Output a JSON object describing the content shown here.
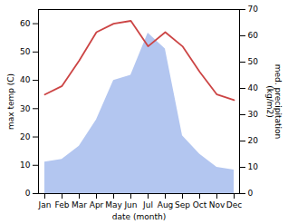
{
  "chart_data": {
    "type": "line",
    "xlabel": "date (month)",
    "ylabel": "max temp (C)",
    "y2label": "med. precipitation\n(kg/m2)",
    "categories": [
      "Jan",
      "Feb",
      "Mar",
      "Apr",
      "May",
      "Jun",
      "Jul",
      "Aug",
      "Sep",
      "Oct",
      "Nov",
      "Dec"
    ],
    "series": [
      {
        "type": "area",
        "axis": "y2",
        "color": "#b3c6f0",
        "values": [
          12,
          13,
          18,
          28,
          43,
          45,
          61,
          55,
          22,
          15,
          10,
          9
        ]
      },
      {
        "type": "line",
        "color": "#cc4444",
        "values": [
          35,
          38,
          47,
          57,
          60,
          61,
          52,
          57,
          52,
          43,
          35,
          33
        ]
      }
    ],
    "ylim": [
      0,
      65
    ],
    "yticks": [
      0,
      10,
      20,
      30,
      40,
      50,
      60
    ],
    "y2lim": [
      0,
      70
    ],
    "y2ticks": [
      0,
      10,
      20,
      30,
      40,
      50,
      60,
      70
    ]
  }
}
